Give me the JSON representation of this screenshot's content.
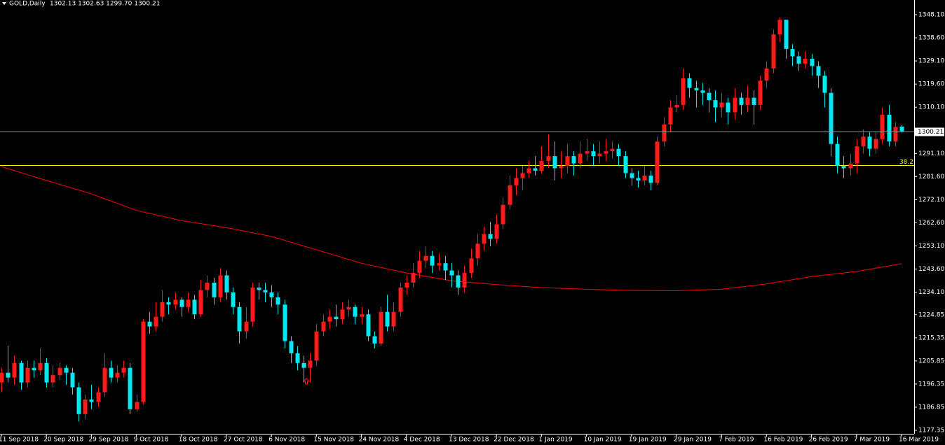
{
  "chart_data": {
    "type": "candlestick",
    "title": "GOLD,Daily",
    "quote": "1302.13 1302.63 1299.70 1300.21",
    "categories": [
      "11 Sep 2018",
      null,
      null,
      null,
      null,
      null,
      null,
      "20 Sep 2018",
      null,
      null,
      null,
      null,
      null,
      null,
      "29 Sep 2018",
      null,
      null,
      null,
      null,
      null,
      null,
      "9 Oct 2018",
      null,
      null,
      null,
      null,
      null,
      null,
      "18 Oct 2018",
      null,
      null,
      null,
      null,
      null,
      null,
      "27 Oct 2018",
      null,
      null,
      null,
      null,
      null,
      null,
      "6 Nov 2018",
      null,
      null,
      null,
      null,
      null,
      null,
      "15 Nov 2018",
      null,
      null,
      null,
      null,
      null,
      null,
      "24 Nov 2018",
      null,
      null,
      null,
      null,
      null,
      null,
      "4 Dec 2018",
      null,
      null,
      null,
      null,
      null,
      null,
      "13 Dec 2018",
      null,
      null,
      null,
      null,
      null,
      null,
      "22 Dec 2018",
      null,
      null,
      null,
      null,
      null,
      null,
      "1 Jan 2019",
      null,
      null,
      null,
      null,
      null,
      null,
      "10 Jan 2019",
      null,
      null,
      null,
      null,
      null,
      null,
      "19 Jan 2019",
      null,
      null,
      null,
      null,
      null,
      null,
      "29 Jan 2019",
      null,
      null,
      null,
      null,
      null,
      null,
      "7 Feb 2019",
      null,
      null,
      null,
      null,
      null,
      null,
      "16 Feb 2019",
      null,
      null,
      null,
      null,
      null,
      null,
      "26 Feb 2019",
      null,
      null,
      null,
      null,
      null,
      null,
      "7 Mar 2019",
      null,
      null,
      null,
      null,
      null,
      null,
      "16 Mar 2019"
    ],
    "open": [
      1197,
      1201,
      1199,
      1205,
      1197,
      1203,
      1202,
      1205,
      1197,
      1200,
      1203,
      1201,
      1195,
      1184,
      1190,
      1189,
      1193,
      1203,
      1199,
      1201,
      1203,
      1186,
      1189,
      1222,
      1220,
      1224,
      1230,
      1229,
      1231,
      1228,
      1231,
      1225,
      1235,
      1238,
      1232,
      1241,
      1234,
      1228,
      1218,
      1222,
      1236,
      1235,
      1234,
      1232,
      1229,
      1214,
      1209,
      1205,
      1203,
      1206,
      1218,
      1222,
      1224,
      1223,
      1227,
      1228,
      1224,
      1225,
      1216,
      1213,
      1226,
      1220,
      1226,
      1236,
      1238,
      1242,
      1247,
      1249,
      1245,
      1246,
      1243,
      1241,
      1236,
      1242,
      1248,
      1254,
      1258,
      1256,
      1262,
      1270,
      1278,
      1281,
      1283,
      1285,
      1284,
      1288,
      1290,
      1285,
      1286,
      1290,
      1287,
      1291,
      1292,
      1290,
      1291,
      1292,
      1293,
      1290,
      1283,
      1281,
      1280,
      1282,
      1279,
      1296,
      1303,
      1310,
      1311,
      1322,
      1318,
      1317,
      1316,
      1313,
      1310,
      1312,
      1308,
      1314,
      1311,
      1314,
      1311,
      1321,
      1326,
      1340,
      1346,
      1334,
      1331,
      1328,
      1330,
      1327,
      1323,
      1316,
      1295,
      1286,
      1285,
      1287,
      1294,
      1298,
      1293,
      1297,
      1307,
      1296,
      1302.13
    ],
    "high": [
      1203,
      1212,
      1208,
      1206,
      1206,
      1206,
      1211,
      1207,
      1204,
      1205,
      1204,
      1203,
      1197,
      1192,
      1196,
      1195,
      1209,
      1206,
      1204,
      1206,
      1205,
      1192,
      1223,
      1226,
      1230,
      1235,
      1232,
      1234,
      1232,
      1234,
      1233,
      1239,
      1241,
      1240,
      1244,
      1243,
      1236,
      1230,
      1228,
      1238,
      1238,
      1238,
      1237,
      1234,
      1231,
      1216,
      1212,
      1208,
      1209,
      1221,
      1225,
      1227,
      1229,
      1230,
      1231,
      1229,
      1228,
      1227,
      1218,
      1228,
      1233,
      1230,
      1238,
      1241,
      1246,
      1251,
      1253,
      1251,
      1250,
      1249,
      1246,
      1243,
      1245,
      1252,
      1258,
      1261,
      1263,
      1266,
      1273,
      1282,
      1285,
      1286,
      1288,
      1290,
      1294,
      1299,
      1296,
      1292,
      1295,
      1292,
      1296,
      1297,
      1295,
      1296,
      1297,
      1296,
      1295,
      1292,
      1285,
      1284,
      1286,
      1284,
      1298,
      1306,
      1313,
      1315,
      1326,
      1324,
      1321,
      1320,
      1318,
      1317,
      1316,
      1314,
      1318,
      1316,
      1319,
      1317,
      1323,
      1329,
      1342,
      1347,
      1346,
      1336,
      1333,
      1333,
      1332,
      1329,
      1325,
      1318,
      1298,
      1290,
      1291,
      1297,
      1301,
      1300,
      1300,
      1310,
      1311,
      1304,
      1302.63
    ],
    "low": [
      1193,
      1197,
      1196,
      1194,
      1195,
      1199,
      1200,
      1195,
      1195,
      1198,
      1196,
      1192,
      1181,
      1182,
      1186,
      1187,
      1191,
      1197,
      1197,
      1199,
      1184,
      1185,
      1188,
      1217,
      1218,
      1222,
      1225,
      1227,
      1224,
      1226,
      1223,
      1224,
      1232,
      1229,
      1230,
      1231,
      1225,
      1213,
      1215,
      1220,
      1231,
      1230,
      1228,
      1225,
      1211,
      1205,
      1202,
      1197,
      1197,
      1204,
      1216,
      1219,
      1220,
      1221,
      1224,
      1221,
      1221,
      1214,
      1211,
      1212,
      1218,
      1218,
      1224,
      1233,
      1236,
      1240,
      1244,
      1242,
      1243,
      1239,
      1236,
      1233,
      1234,
      1240,
      1245,
      1251,
      1253,
      1254,
      1260,
      1268,
      1274,
      1276,
      1281,
      1282,
      1283,
      1285,
      1280,
      1281,
      1283,
      1282,
      1285,
      1288,
      1286,
      1287,
      1288,
      1289,
      1286,
      1281,
      1278,
      1277,
      1278,
      1276,
      1278,
      1294,
      1300,
      1308,
      1309,
      1314,
      1310,
      1311,
      1308,
      1304,
      1306,
      1303,
      1305,
      1307,
      1308,
      1303,
      1309,
      1318,
      1324,
      1337,
      1330,
      1327,
      1325,
      1326,
      1323,
      1318,
      1310,
      1290,
      1283,
      1281,
      1282,
      1283,
      1291,
      1290,
      1291,
      1295,
      1294,
      1294,
      1299.7
    ],
    "close": [
      1201,
      1199,
      1205,
      1197,
      1203,
      1202,
      1205,
      1197,
      1200,
      1203,
      1201,
      1195,
      1184,
      1190,
      1189,
      1193,
      1203,
      1199,
      1201,
      1203,
      1186,
      1189,
      1222,
      1220,
      1224,
      1230,
      1229,
      1231,
      1228,
      1231,
      1225,
      1235,
      1238,
      1232,
      1241,
      1234,
      1228,
      1218,
      1222,
      1236,
      1235,
      1234,
      1232,
      1229,
      1214,
      1209,
      1205,
      1203,
      1206,
      1218,
      1222,
      1224,
      1223,
      1227,
      1228,
      1224,
      1225,
      1216,
      1213,
      1226,
      1220,
      1226,
      1236,
      1238,
      1242,
      1247,
      1249,
      1245,
      1246,
      1243,
      1241,
      1236,
      1242,
      1248,
      1254,
      1258,
      1256,
      1262,
      1270,
      1278,
      1281,
      1283,
      1285,
      1284,
      1288,
      1290,
      1285,
      1286,
      1290,
      1287,
      1291,
      1292,
      1290,
      1291,
      1292,
      1293,
      1290,
      1283,
      1281,
      1280,
      1282,
      1279,
      1296,
      1303,
      1310,
      1311,
      1322,
      1318,
      1317,
      1316,
      1313,
      1310,
      1312,
      1308,
      1314,
      1311,
      1314,
      1311,
      1321,
      1326,
      1340,
      1346,
      1334,
      1331,
      1328,
      1330,
      1327,
      1323,
      1316,
      1295,
      1286,
      1285,
      1287,
      1294,
      1298,
      1293,
      1297,
      1307,
      1296,
      1302,
      1300.21
    ],
    "up_color": "#ff1a1a",
    "down_color": "#00e8f0",
    "ylim": [
      1175.91,
      1354.14
    ],
    "yticks": [
      {
        "value": 1348.1,
        "label": "1348.10"
      },
      {
        "value": 1338.6,
        "label": "1338.60"
      },
      {
        "value": 1329.1,
        "label": "1329.10"
      },
      {
        "value": 1319.6,
        "label": "1319.60"
      },
      {
        "value": 1310.1,
        "label": "1310.10"
      },
      {
        "value": 1291.1,
        "label": "1291.10"
      },
      {
        "value": 1281.6,
        "label": "1281.60"
      },
      {
        "value": 1272.1,
        "label": "1272.10"
      },
      {
        "value": 1262.6,
        "label": "1262.60"
      },
      {
        "value": 1253.1,
        "label": "1253.10"
      },
      {
        "value": 1243.6,
        "label": "1243.60"
      },
      {
        "value": 1234.1,
        "label": "1234.10"
      },
      {
        "value": 1224.85,
        "label": "1224.85"
      },
      {
        "value": 1215.35,
        "label": "1215.35"
      },
      {
        "value": 1205.85,
        "label": "1205.85"
      },
      {
        "value": 1196.35,
        "label": "1196.35"
      },
      {
        "value": 1186.85,
        "label": "1186.85"
      },
      {
        "value": 1177.35,
        "label": "1177.35"
      }
    ],
    "moving_average": {
      "color": "#ff0000",
      "x": [
        0,
        7,
        14,
        21,
        28,
        35,
        42,
        49,
        56,
        63,
        70,
        77,
        84,
        91,
        98,
        105,
        112,
        119,
        126,
        133,
        140
      ],
      "values": [
        1285.7,
        1280.0,
        1274.5,
        1267.7,
        1263.5,
        1260.6,
        1257.0,
        1251.5,
        1246.0,
        1242.0,
        1238.8,
        1237.2,
        1236.0,
        1235.3,
        1234.8,
        1234.7,
        1235.3,
        1237.5,
        1240.5,
        1242.6,
        1245.8
      ]
    },
    "fibonacci": {
      "level": 38.2,
      "price": 1286.3,
      "color": "#ffff00"
    },
    "bid_line_color": "#8c9cac"
  }
}
